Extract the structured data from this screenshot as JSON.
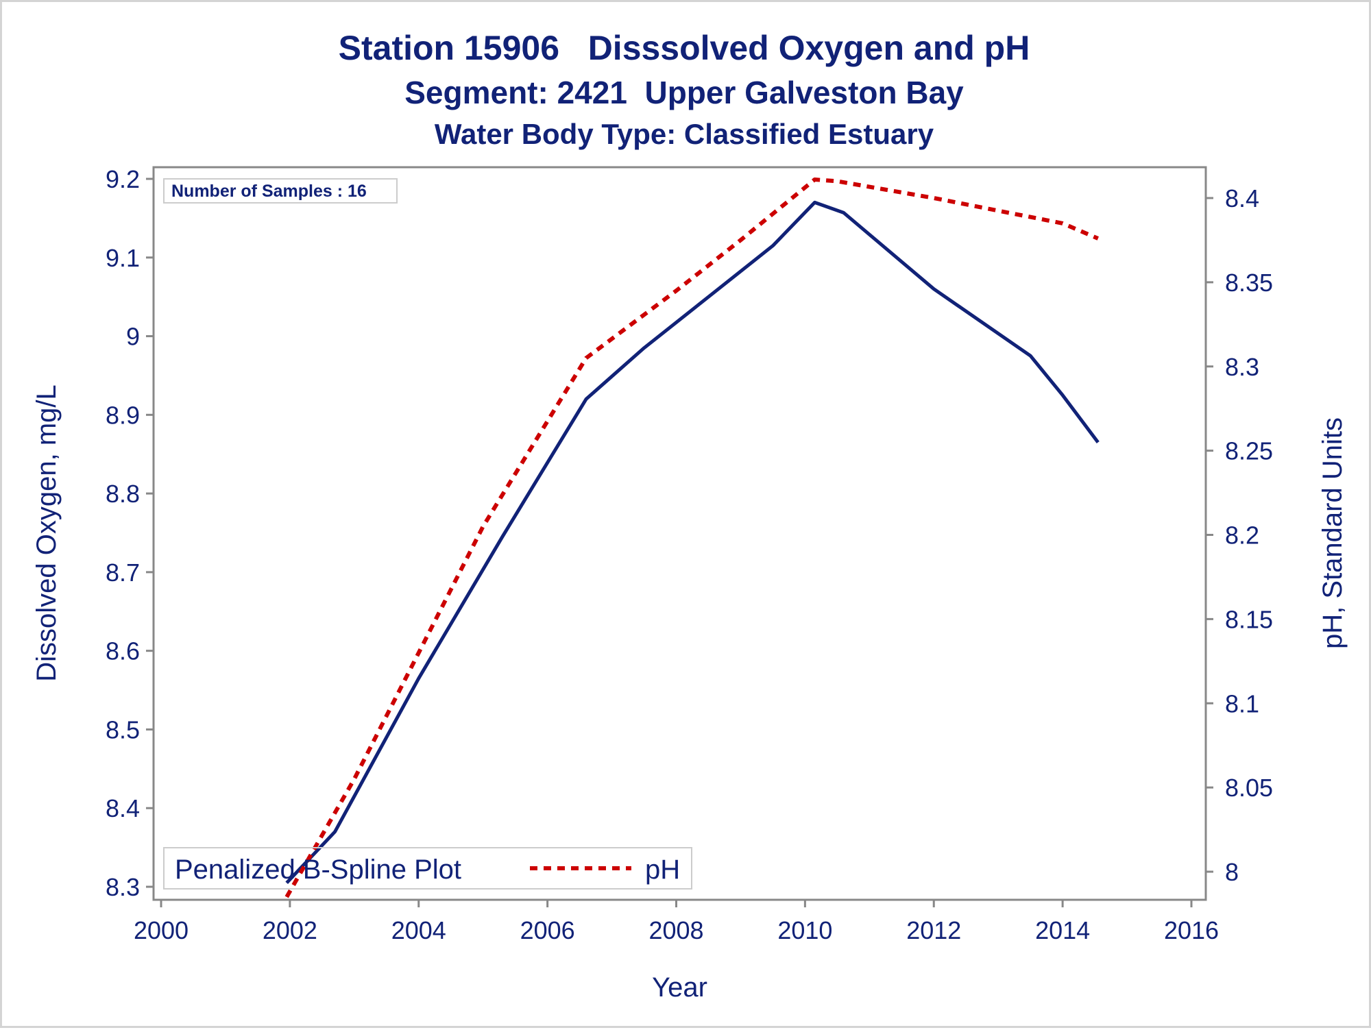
{
  "titles": {
    "line1": "Station 15906   Disssolved Oxygen and pH",
    "line2": "Segment: 2421  Upper Galveston Bay",
    "line3": "Water Body Type: Classified Estuary"
  },
  "inset": {
    "text": "Number of Samples : 16"
  },
  "legend": {
    "title": "Penalized B-Spline Plot",
    "entries": [
      {
        "label": "pH",
        "style": "dashed",
        "color": "#cc0000"
      }
    ]
  },
  "colors": {
    "do_line": "#112277",
    "ph_line": "#cc0000",
    "axis": "#888888",
    "text": "#112277"
  },
  "chart_data": {
    "type": "line",
    "title": "Station 15906   Disssolved Oxygen and pH",
    "xlabel": "Year",
    "ylabel": "Dissolved Oxygen, mg/L",
    "y2label": "pH, Standard Units",
    "xlim": [
      2000,
      2016
    ],
    "ylim": [
      8.3,
      9.2
    ],
    "y2lim": [
      8.0,
      8.4
    ],
    "x_ticks": [
      "2000",
      "2002",
      "2004",
      "2006",
      "2008",
      "2010",
      "2012",
      "2014",
      "2016"
    ],
    "y_ticks": [
      "8.3",
      "8.4",
      "8.5",
      "8.6",
      "8.7",
      "8.8",
      "8.9",
      "9",
      "9.1",
      "9.2"
    ],
    "y2_ticks": [
      "8",
      "8.05",
      "8.1",
      "8.15",
      "8.2",
      "8.25",
      "8.3",
      "8.35",
      "8.4"
    ],
    "grid": false,
    "series": [
      {
        "axis": "left",
        "style": "solid",
        "x": [
          2001.95,
          2002.7,
          2004.0,
          2005.3,
          2006.6,
          2007.5,
          2008.5,
          2009.5,
          2010.15,
          2010.6,
          2012.0,
          2013.5,
          2014.0,
          2014.55
        ],
        "values": [
          8.305,
          8.37,
          8.565,
          8.745,
          8.92,
          8.985,
          9.05,
          9.115,
          9.17,
          9.157,
          9.06,
          8.975,
          8.925,
          8.865
        ]
      },
      {
        "name": "pH",
        "axis": "right",
        "style": "dashed",
        "x": [
          2001.95,
          2003.0,
          2004.0,
          2005.0,
          2006.6,
          2008.0,
          2009.0,
          2010.15,
          2010.5,
          2012.0,
          2014.0,
          2014.55
        ],
        "values": [
          7.985,
          8.055,
          8.13,
          8.205,
          8.305,
          8.345,
          8.375,
          8.411,
          8.41,
          8.4,
          8.385,
          8.376
        ]
      }
    ]
  }
}
